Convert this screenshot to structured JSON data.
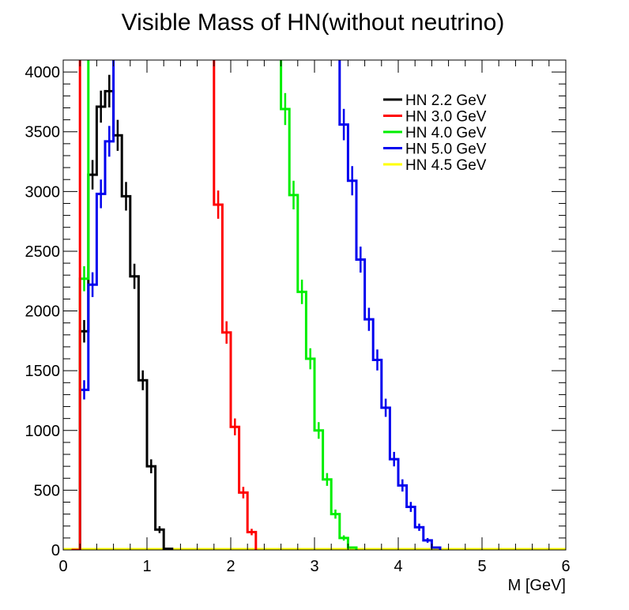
{
  "chart_data": {
    "type": "line",
    "title": "Visible Mass of HN(without neutrino)",
    "xlabel": "M [GeV]",
    "ylabel": "",
    "xlim": [
      0,
      6
    ],
    "ylim": [
      0,
      4100
    ],
    "x_ticks": [
      0,
      1,
      2,
      3,
      4,
      5,
      6
    ],
    "x_tick_labels": [
      "0",
      "1",
      "2",
      "3",
      "4",
      "5",
      "6"
    ],
    "y_ticks": [
      0,
      500,
      1000,
      1500,
      2000,
      2500,
      3000,
      3500,
      4000
    ],
    "y_tick_labels": [
      "0",
      "500",
      "1000",
      "1500",
      "2000",
      "2500",
      "3000",
      "3500",
      "4000"
    ],
    "bin_width": 0.1,
    "legend_position": "top-right",
    "grid": false,
    "series": [
      {
        "name": "HN 2.2 GeV",
        "color": "#000000",
        "bin_starts": [
          0.2,
          0.3,
          0.4,
          0.5,
          0.6,
          0.7,
          0.8,
          0.9,
          1.0,
          1.1,
          1.2
        ],
        "values": [
          1830,
          3140,
          3710,
          3840,
          3470,
          2960,
          2290,
          1420,
          700,
          170,
          10
        ]
      },
      {
        "name": "HN 3.0 GeV",
        "color": "#ff0000",
        "bin_starts": [
          0.1,
          0.2,
          1.8,
          1.9,
          2.0,
          2.1,
          2.2
        ],
        "values": [
          0,
          6000,
          2890,
          1820,
          1030,
          480,
          150
        ]
      },
      {
        "name": "HN 4.0 GeV",
        "color": "#00ee00",
        "bin_starts": [
          0.2,
          0.3,
          2.6,
          2.7,
          2.8,
          2.9,
          3.0,
          3.1,
          3.2,
          3.3,
          3.4
        ],
        "values": [
          2270,
          6000,
          3690,
          2970,
          2160,
          1600,
          1000,
          590,
          300,
          100,
          20
        ]
      },
      {
        "name": "HN 5.0 GeV",
        "color": "#0000ee",
        "bin_starts": [
          0.1,
          0.2,
          0.3,
          0.4,
          0.5,
          0.6,
          3.3,
          3.4,
          3.5,
          3.6,
          3.7,
          3.8,
          3.9,
          4.0,
          4.1,
          4.2,
          4.3,
          4.4
        ],
        "values": [
          0,
          1340,
          2220,
          2980,
          3420,
          6000,
          3560,
          3090,
          2430,
          1930,
          1590,
          1190,
          760,
          540,
          360,
          190,
          80,
          20
        ]
      },
      {
        "name": "HN 4.5 GeV",
        "color": "#ffff00",
        "bin_starts": [
          0.0
        ],
        "values": [
          0
        ]
      }
    ]
  }
}
